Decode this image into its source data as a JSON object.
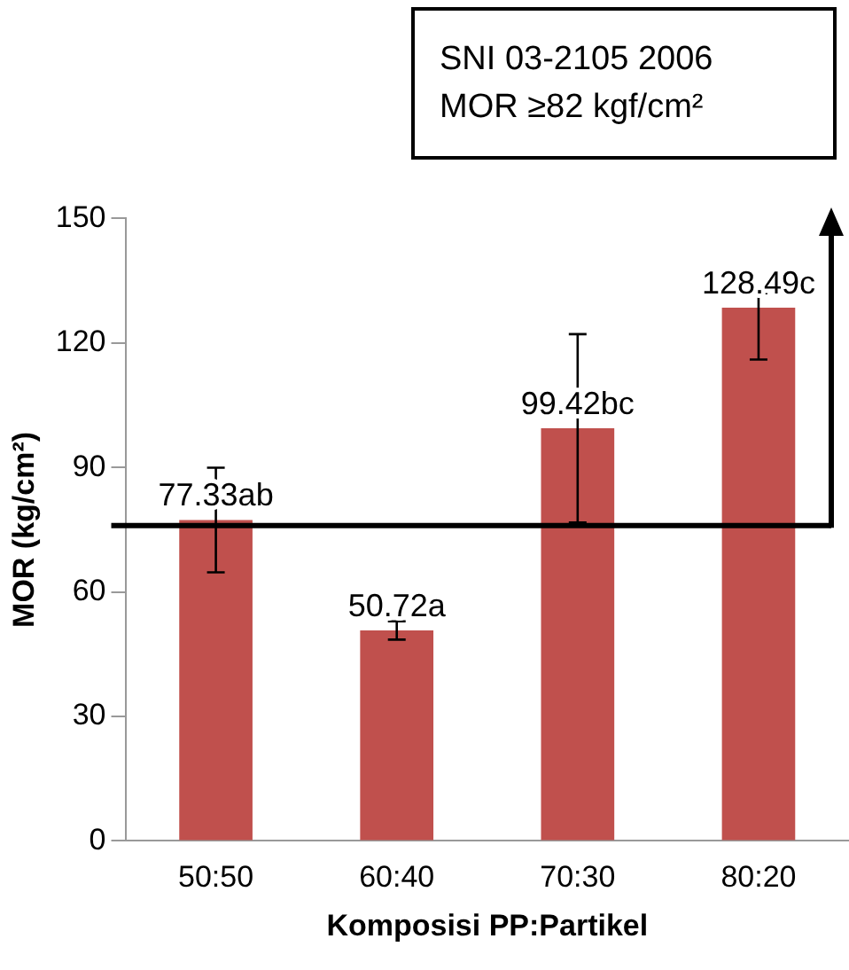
{
  "chart_data": {
    "type": "bar",
    "xlabel": "Komposisi PP:Partikel",
    "ylabel": "MOR (kg/cm²)",
    "categories": [
      "50:50",
      "60:40",
      "70:30",
      "80:20"
    ],
    "values": [
      77.33,
      50.72,
      99.42,
      128.49
    ],
    "value_labels": [
      "77.33ab",
      "50.72a",
      "99.42bc",
      "128.49c"
    ],
    "errors": [
      12.6,
      2.2,
      22.7,
      [
        116,
        132
      ]
    ],
    "color": "#c0504d",
    "ylim": [
      0,
      150
    ],
    "yticks": [
      0,
      30,
      60,
      90,
      120,
      150
    ],
    "grid": false,
    "legend": false,
    "ref_lines": [
      {
        "axis": "y",
        "value": 76,
        "color": "#000000"
      }
    ],
    "annotations": [
      "SNI 03-2105 2006",
      "MOR ≥82 kgf/cm²"
    ]
  }
}
